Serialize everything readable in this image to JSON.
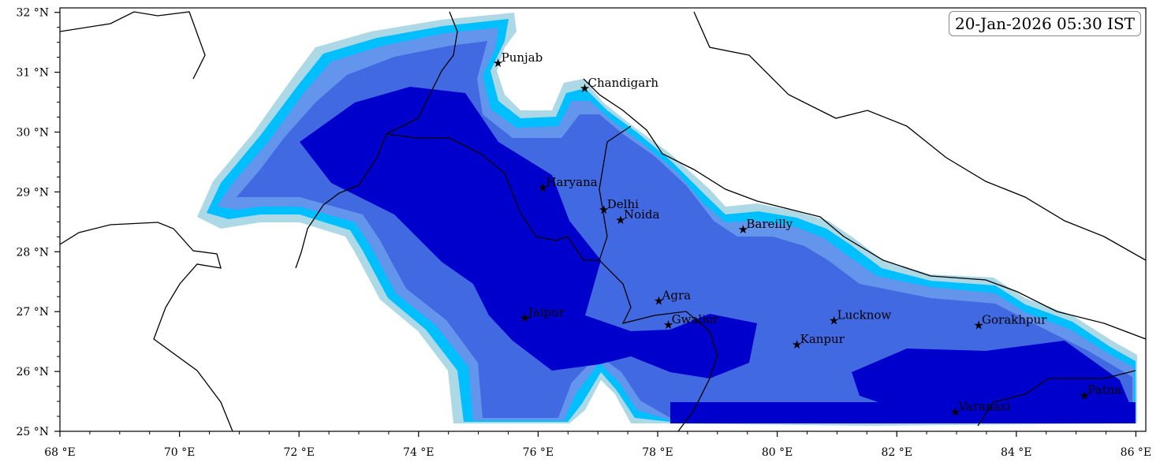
{
  "map": {
    "timestamp": "20-Jan-2026 05:30 IST",
    "extent": {
      "lon": [
        68,
        86.2
      ],
      "lat": [
        25,
        32.1
      ]
    },
    "x_ticks": [
      {
        "value": 68,
        "label": "68 °E"
      },
      {
        "value": 70,
        "label": "70 °E"
      },
      {
        "value": 72,
        "label": "72 °E"
      },
      {
        "value": 74,
        "label": "74 °E"
      },
      {
        "value": 76,
        "label": "76 °E"
      },
      {
        "value": 78,
        "label": "78 °E"
      },
      {
        "value": 80,
        "label": "80 °E"
      },
      {
        "value": 82,
        "label": "82 °E"
      },
      {
        "value": 84,
        "label": "84 °E"
      },
      {
        "value": 86,
        "label": "86 °E"
      }
    ],
    "y_ticks": [
      {
        "value": 25,
        "label": "25 °N"
      },
      {
        "value": 26,
        "label": "26 °N"
      },
      {
        "value": 27,
        "label": "27 °N"
      },
      {
        "value": 28,
        "label": "28 °N"
      },
      {
        "value": 29,
        "label": "29 °N"
      },
      {
        "value": 30,
        "label": "30 °N"
      },
      {
        "value": 31,
        "label": "31 °N"
      },
      {
        "value": 32,
        "label": "32 °N"
      }
    ],
    "fog_colors": [
      "#add8e6",
      "#00bfff",
      "#6495ed",
      "#4169e1",
      "#0000cd"
    ],
    "cities": [
      {
        "name": "Punjab",
        "lon": 75.33,
        "lat": 31.15
      },
      {
        "name": "Chandigarh",
        "lon": 76.78,
        "lat": 30.73
      },
      {
        "name": "Haryana",
        "lon": 76.08,
        "lat": 29.07
      },
      {
        "name": "Delhi",
        "lon": 77.1,
        "lat": 28.7
      },
      {
        "name": "Noida",
        "lon": 77.38,
        "lat": 28.53
      },
      {
        "name": "Bareilly",
        "lon": 79.43,
        "lat": 28.37
      },
      {
        "name": "Agra",
        "lon": 78.02,
        "lat": 27.18
      },
      {
        "name": "Jaipur",
        "lon": 75.78,
        "lat": 26.9
      },
      {
        "name": "Gwalior",
        "lon": 78.18,
        "lat": 26.78
      },
      {
        "name": "Lucknow",
        "lon": 80.95,
        "lat": 26.85
      },
      {
        "name": "Kanpur",
        "lon": 80.33,
        "lat": 26.45
      },
      {
        "name": "Gorakhpur",
        "lon": 83.37,
        "lat": 26.77
      },
      {
        "name": "Varanasi",
        "lon": 82.98,
        "lat": 25.32
      },
      {
        "name": "Patna",
        "lon": 85.14,
        "lat": 25.6
      }
    ]
  }
}
